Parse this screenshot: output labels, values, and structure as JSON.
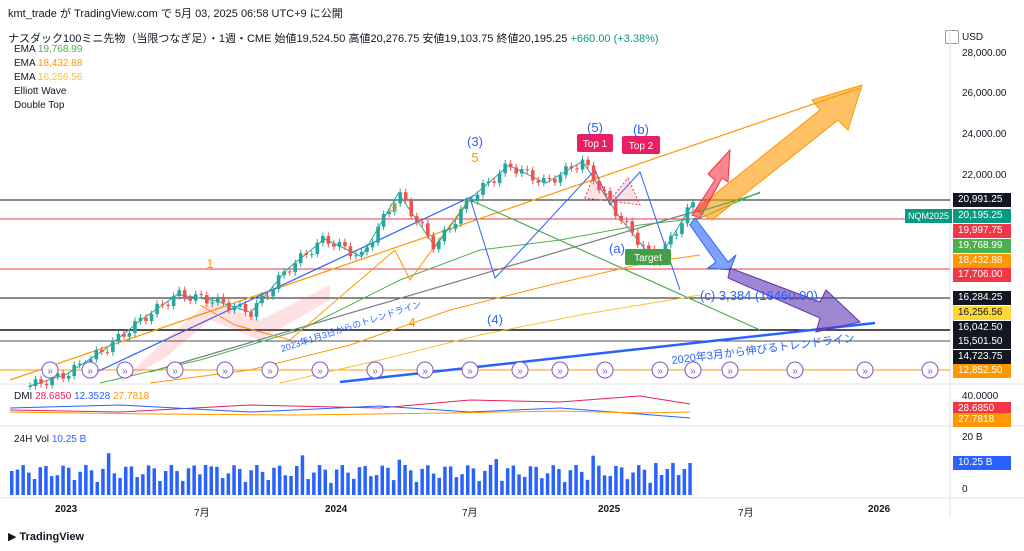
{
  "header": {
    "author_line": "kmt_trade が TradingView.com で 5月 03, 2025 06:58 UTC+9 に公開"
  },
  "symbol": {
    "title": "ナスダック100ミニ先物（当限つなぎ足）・1週・CME",
    "open_label": "始値",
    "open": "19,524.50",
    "high_label": "高値",
    "high": "20,276.75",
    "low_label": "安値",
    "low": "19,103.75",
    "close_label": "終値",
    "close": "20,195.25",
    "change": "+660.00 (+3.38%)"
  },
  "indicators": [
    {
      "name": "EMA",
      "value": "19,768.99",
      "color": "#4caf50"
    },
    {
      "name": "EMA",
      "value": "18,432.88",
      "color": "#ff9800"
    },
    {
      "name": "EMA",
      "value": "16,256.56",
      "color": "#fbc02d"
    },
    {
      "name": "Elliott Wave",
      "value": "",
      "color": "#131722"
    },
    {
      "name": "Double Top",
      "value": "",
      "color": "#131722"
    }
  ],
  "currency": "USD",
  "y_axis_labels": [
    "28,000.00",
    "26,000.00",
    "24,000.00",
    "22,000.00"
  ],
  "price_tags": [
    {
      "text": "20,991.25",
      "bg": "#131722"
    },
    {
      "text": "20,195.25",
      "bg": "#089981",
      "tag": "NQM2025"
    },
    {
      "text": "19,997.75",
      "bg": "#f23645"
    },
    {
      "text": "19,768.99",
      "bg": "#4caf50"
    },
    {
      "text": "18,432.88",
      "bg": "#ff9800"
    },
    {
      "text": "17,706.00",
      "bg": "#f23645"
    },
    {
      "text": "16,284.25",
      "bg": "#131722"
    },
    {
      "text": "16,256.56",
      "bg": "#fdd835"
    },
    {
      "text": "16,042.50",
      "bg": "#131722"
    },
    {
      "text": "15,501.50",
      "bg": "#131722"
    },
    {
      "text": "14,723.75",
      "bg": "#131722"
    },
    {
      "text": "12,852.50",
      "bg": "#ff9800"
    }
  ],
  "annotations": {
    "wave3_blue": "(3)",
    "wave5_orange": "5",
    "wave3_orange": "3",
    "wave1_orange": "1",
    "wave4_orange": "4",
    "wave4_blue": "(4)",
    "wave5_blue": "(5)",
    "waveb_blue": "(b)",
    "wavea_blue": "(a)",
    "wavec_label": "(c) 3,384 (16460.00)",
    "top1": "Top 1",
    "top2": "Top 2",
    "target": "Target",
    "trend2023": "2023年1月3日からのトレンドライン",
    "trend2020": "2020年3月から伸びるトレンドライン"
  },
  "dmi": {
    "name": "DMI",
    "v1": "28.6850",
    "v2": "12.3528",
    "v3": "27.7818",
    "axis_top": "40.0000",
    "tag1": "28.6850",
    "tag2": "27.7818"
  },
  "volume": {
    "name": "24H Vol",
    "value": "10.25 B",
    "axis_top": "20 B",
    "axis_bottom": "0",
    "tag": "10.25 B"
  },
  "x_axis": [
    {
      "text": "2023",
      "bold": true
    },
    {
      "text": "7月",
      "bold": false
    },
    {
      "text": "2024",
      "bold": true
    },
    {
      "text": "7月",
      "bold": false
    },
    {
      "text": "2025",
      "bold": true
    },
    {
      "text": "7月",
      "bold": false
    },
    {
      "text": "2026",
      "bold": true
    }
  ],
  "footer": "TradingView",
  "chart_data": {
    "type": "candlestick",
    "series_ema": [
      {
        "name": "EMA",
        "last": 19768.99
      },
      {
        "name": "EMA",
        "last": 18432.88
      },
      {
        "name": "EMA",
        "last": 16256.56
      }
    ],
    "price_range": [
      12800,
      28000
    ],
    "close_path": [
      [
        "2022-12",
        11000
      ],
      [
        "2023-01",
        11600
      ],
      [
        "2023-03",
        12800
      ],
      [
        "2023-05",
        14300
      ],
      [
        "2023-07",
        15600
      ],
      [
        "2023-08",
        15300
      ],
      [
        "2023-10",
        14700
      ],
      [
        "2023-12",
        16900
      ],
      [
        "2024-03",
        18400
      ],
      [
        "2024-04",
        17500
      ],
      [
        "2024-07",
        20700
      ],
      [
        "2024-08",
        18000
      ],
      [
        "2024-10",
        20500
      ],
      [
        "2024-12",
        22100
      ],
      [
        "2025-01",
        21200
      ],
      [
        "2025-02",
        22300
      ],
      [
        "2025-03",
        19500
      ],
      [
        "2025-04",
        17200
      ],
      [
        "2025-05",
        20195.25
      ]
    ]
  }
}
